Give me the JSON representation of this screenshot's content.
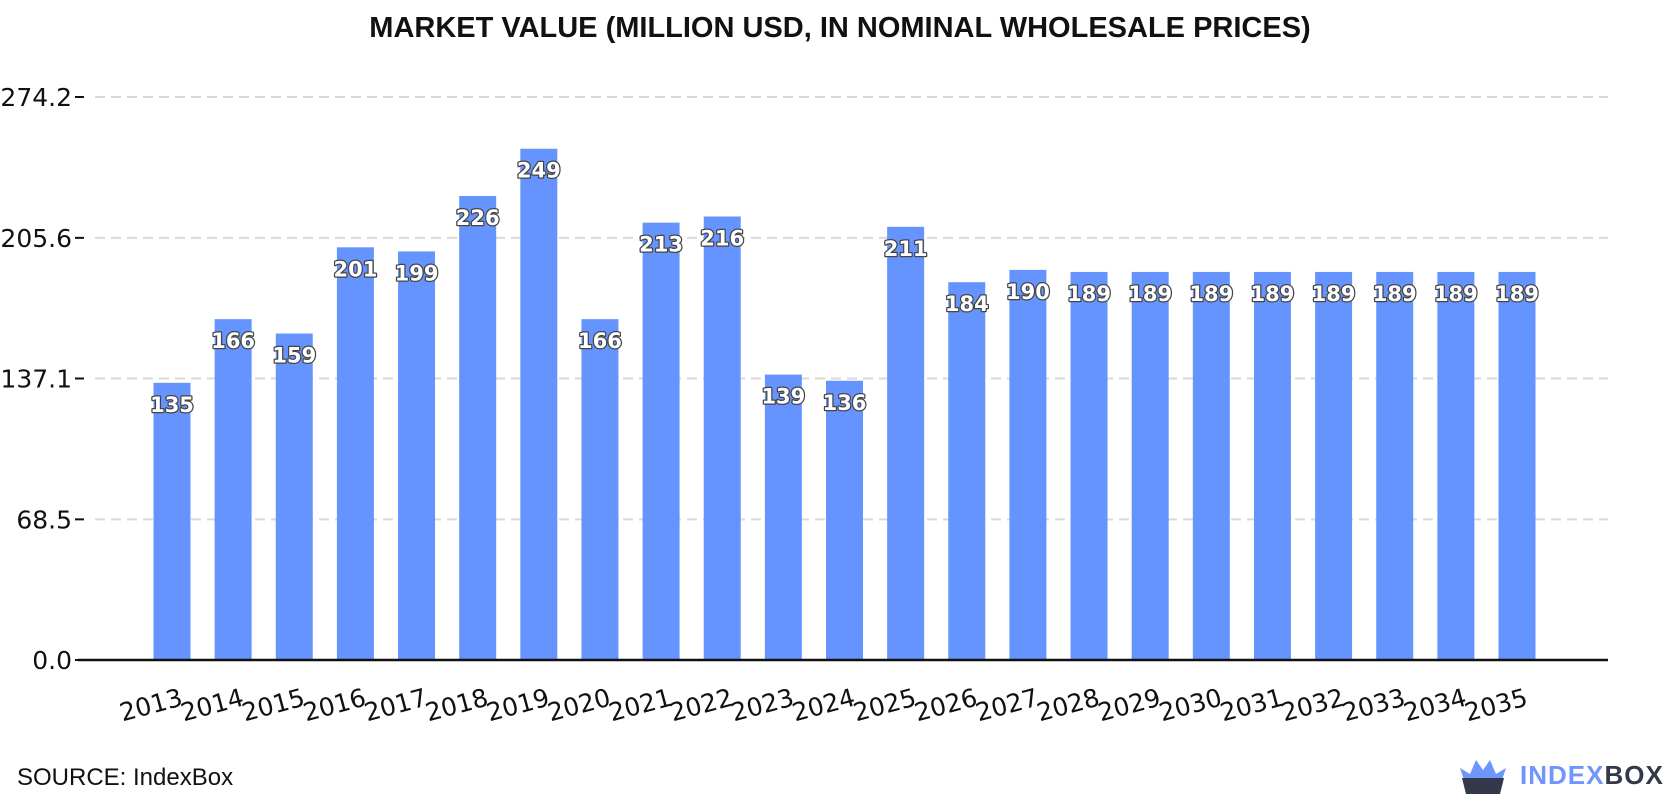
{
  "chart_data": {
    "type": "bar",
    "title": "MARKET VALUE (MILLION USD, IN NOMINAL WHOLESALE PRICES)",
    "xlabel": "",
    "ylabel": "",
    "categories": [
      "2013",
      "2014",
      "2015",
      "2016",
      "2017",
      "2018",
      "2019",
      "2020",
      "2021",
      "2022",
      "2023",
      "2024",
      "2025",
      "2026",
      "2027",
      "2028",
      "2029",
      "2030",
      "2031",
      "2032",
      "2033",
      "2034",
      "2035"
    ],
    "values": [
      135,
      166,
      159,
      201,
      199,
      226,
      249,
      166,
      213,
      216,
      139,
      136,
      211,
      184,
      190,
      189,
      189,
      189,
      189,
      189,
      189,
      189,
      189
    ],
    "data_labels": [
      "135",
      "166",
      "159",
      "201",
      "199",
      "226",
      "249",
      "166",
      "213",
      "216",
      "139",
      "136",
      "211",
      "184",
      "190",
      "189",
      "189",
      "189",
      "189",
      "189",
      "189",
      "189",
      "189"
    ],
    "y_ticks": [
      0.0,
      68.5,
      137.1,
      205.6,
      274.2
    ],
    "y_tick_labels": [
      "0.0",
      "68.5",
      "137.1",
      "205.6",
      "274.2"
    ],
    "ylim": [
      0,
      274.2
    ],
    "grid": true,
    "bar_color": "#6694ff"
  },
  "source": "SOURCE: IndexBox",
  "brand": {
    "part1": "INDEX",
    "part2": "BOX",
    "icon": "crown-box-icon"
  }
}
